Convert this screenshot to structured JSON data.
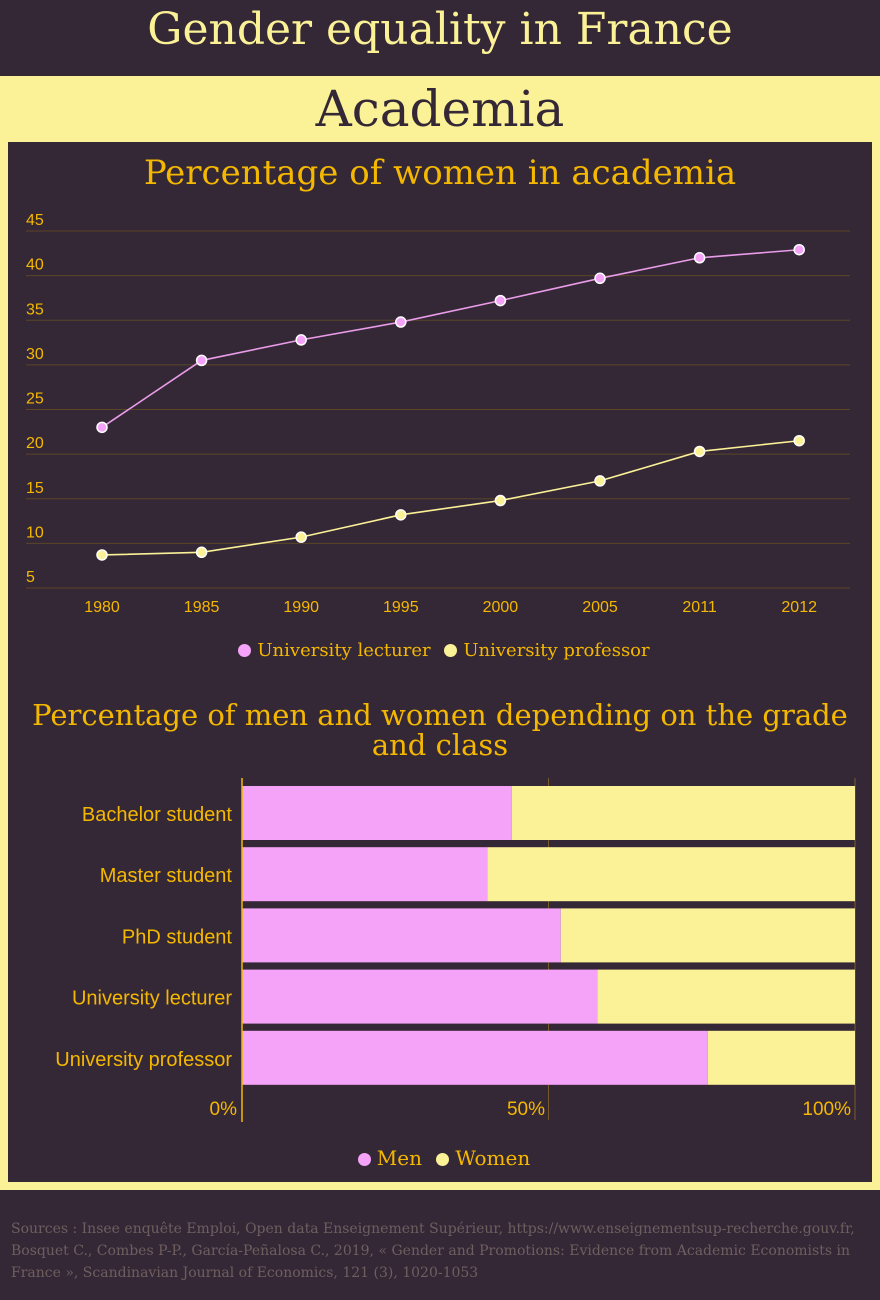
{
  "header": {
    "title": "Gender equality in France",
    "section": "Academia"
  },
  "colors": {
    "background": "#352836",
    "band": "#fbf197",
    "accent": "#f5b800",
    "lecturer": "#e99ce9",
    "professor": "#fbf197",
    "men": "#f5a3f8",
    "women": "#fbf197"
  },
  "chart_data": [
    {
      "type": "line",
      "title": "Percentage of women in academia",
      "categories": [
        "1980",
        "1985",
        "1990",
        "1995",
        "2000",
        "2005",
        "2011",
        "2012"
      ],
      "y_ticks": [
        5,
        10,
        15,
        20,
        25,
        30,
        35,
        40,
        45
      ],
      "ylim": [
        5,
        45
      ],
      "grid": true,
      "legend_placement": "bottom",
      "series": [
        {
          "name": "University lecturer",
          "values": [
            23,
            30.5,
            32.8,
            34.8,
            37.2,
            39.7,
            42,
            42.9
          ]
        },
        {
          "name": "University professor",
          "values": [
            8.7,
            9,
            10.7,
            13.2,
            14.8,
            17,
            20.3,
            21.5
          ]
        }
      ]
    },
    {
      "type": "bar",
      "stacked": true,
      "orientation": "horizontal",
      "title": "Percentage of men and women depending on the grade and class",
      "categories": [
        "Bachelor student",
        "Master student",
        "PhD student",
        "University lecturer",
        "University professor"
      ],
      "x_ticks": [
        "0%",
        "50%",
        "100%"
      ],
      "xlim": [
        0,
        100
      ],
      "legend_placement": "bottom",
      "series": [
        {
          "name": "Men",
          "values": [
            44,
            40,
            52,
            58,
            76
          ]
        },
        {
          "name": "Women",
          "values": [
            56,
            60,
            48,
            42,
            24
          ]
        }
      ]
    }
  ],
  "sources": "Sources : Insee enquête Emploi, Open data Enseignement Supérieur, https://www.enseignementsup-recherche.gouv.fr, Bosquet C., Combes P-P., García-Peñalosa C., 2019, « Gender and Promotions: Evidence from Academic Economists in France », Scandinavian Journal of Economics, 121 (3), 1020-1053"
}
